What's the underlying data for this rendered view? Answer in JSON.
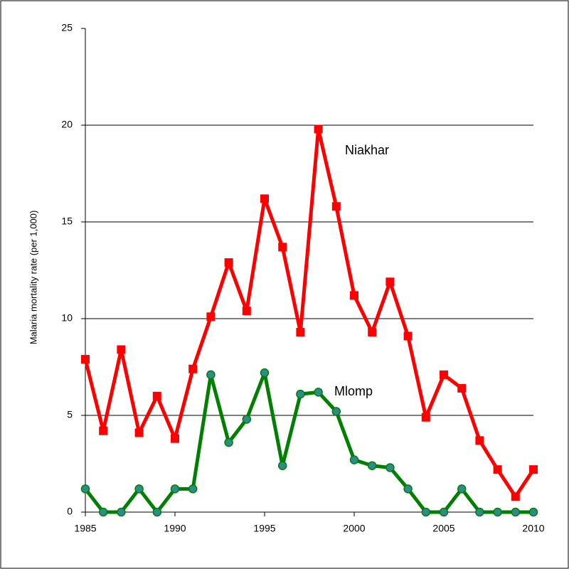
{
  "chart_data": {
    "type": "line",
    "y_label": "Malaria mortality rate (per 1,000)",
    "x": [
      1985,
      1986,
      1987,
      1988,
      1989,
      1990,
      1991,
      1992,
      1993,
      1994,
      1995,
      1996,
      1997,
      1998,
      1999,
      2000,
      2001,
      2002,
      2003,
      2004,
      2005,
      2006,
      2007,
      2008,
      2009,
      2010
    ],
    "series": [
      {
        "name": "Niakhar",
        "color": "#ff0000",
        "marker": "square",
        "values": [
          7.9,
          4.2,
          8.4,
          4.1,
          6.0,
          3.8,
          7.4,
          10.1,
          12.9,
          10.4,
          16.2,
          13.7,
          9.3,
          19.8,
          15.8,
          11.2,
          9.3,
          11.9,
          9.1,
          4.9,
          7.1,
          6.4,
          3.7,
          2.2,
          0.8,
          2.2
        ]
      },
      {
        "name": "Mlomp",
        "color": "#008000",
        "marker": "circle",
        "values": [
          1.2,
          0,
          0,
          1.2,
          0,
          1.2,
          1.2,
          7.1,
          3.6,
          4.8,
          7.2,
          2.4,
          6.1,
          6.2,
          5.2,
          2.7,
          2.4,
          2.3,
          1.2,
          0,
          0,
          1.2,
          0,
          0,
          0,
          0
        ]
      }
    ],
    "xlim": [
      1985,
      2010
    ],
    "xticks": [
      1985,
      1990,
      1995,
      2000,
      2005,
      2010
    ],
    "ylim": [
      0,
      25
    ],
    "yticks": [
      0,
      5,
      10,
      15,
      20,
      25
    ],
    "grid": true
  }
}
